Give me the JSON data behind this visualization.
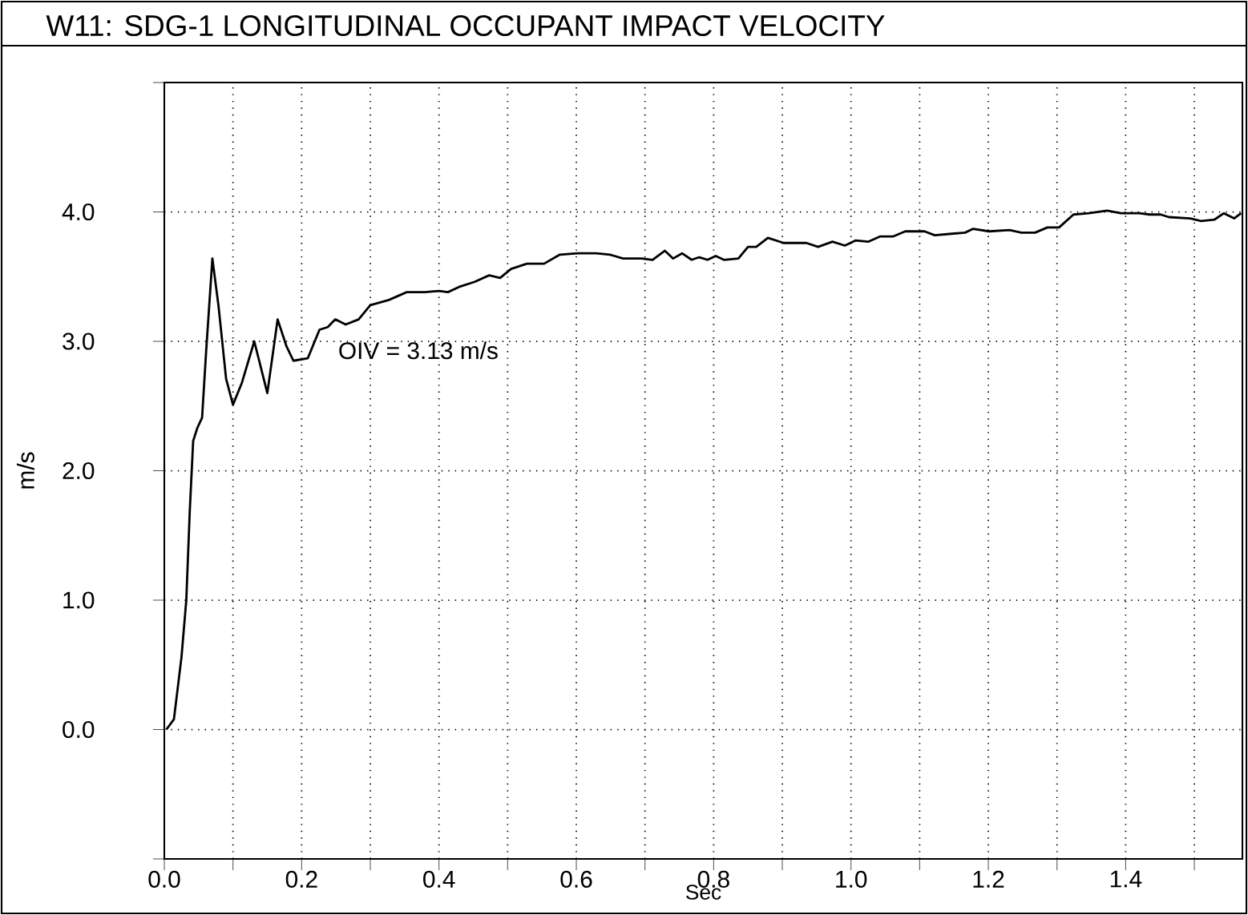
{
  "chart_data": {
    "type": "line",
    "title": "W11: SDG-1 LONGITUDINAL OCCUPANT IMPACT VELOCITY",
    "xlabel": "Sec",
    "ylabel": "m/s",
    "annotations": [
      "OIV = 3.13 m/s"
    ],
    "x": [
      0.003,
      0.014,
      0.025,
      0.032,
      0.037,
      0.042,
      0.048,
      0.055,
      0.061,
      0.07,
      0.079,
      0.09,
      0.1,
      0.113,
      0.131,
      0.15,
      0.165,
      0.178,
      0.188,
      0.209,
      0.226,
      0.238,
      0.249,
      0.264,
      0.283,
      0.3,
      0.327,
      0.353,
      0.379,
      0.4,
      0.413,
      0.429,
      0.452,
      0.473,
      0.489,
      0.505,
      0.528,
      0.553,
      0.576,
      0.602,
      0.629,
      0.649,
      0.668,
      0.695,
      0.711,
      0.729,
      0.741,
      0.754,
      0.768,
      0.779,
      0.791,
      0.803,
      0.815,
      0.836,
      0.85,
      0.862,
      0.879,
      0.902,
      0.935,
      0.952,
      0.973,
      0.991,
      1.007,
      1.025,
      1.042,
      1.061,
      1.079,
      1.107,
      1.122,
      1.143,
      1.166,
      1.178,
      1.201,
      1.231,
      1.248,
      1.268,
      1.286,
      1.303,
      1.324,
      1.346,
      1.373,
      1.393,
      1.42,
      1.435,
      1.451,
      1.463,
      1.494,
      1.51,
      1.529,
      1.543,
      1.558,
      1.568
    ],
    "values": [
      0.0,
      0.08,
      0.56,
      1.0,
      1.68,
      2.23,
      2.33,
      2.41,
      2.93,
      3.64,
      3.27,
      2.71,
      2.51,
      2.68,
      3.0,
      2.6,
      3.17,
      2.96,
      2.85,
      2.87,
      3.09,
      3.11,
      3.17,
      3.13,
      3.17,
      3.28,
      3.32,
      3.38,
      3.38,
      3.39,
      3.38,
      3.42,
      3.46,
      3.51,
      3.49,
      3.56,
      3.6,
      3.6,
      3.67,
      3.68,
      3.68,
      3.67,
      3.64,
      3.64,
      3.63,
      3.7,
      3.64,
      3.68,
      3.63,
      3.65,
      3.63,
      3.66,
      3.63,
      3.64,
      3.73,
      3.73,
      3.8,
      3.76,
      3.76,
      3.73,
      3.77,
      3.74,
      3.78,
      3.77,
      3.81,
      3.81,
      3.85,
      3.85,
      3.82,
      3.83,
      3.84,
      3.87,
      3.85,
      3.86,
      3.84,
      3.84,
      3.88,
      3.88,
      3.98,
      3.99,
      4.01,
      3.99,
      3.99,
      3.98,
      3.98,
      3.96,
      3.95,
      3.93,
      3.94,
      3.99,
      3.95,
      3.99
    ],
    "color": "#000000",
    "xlim": [
      0,
      1.57
    ],
    "ylim": [
      -1.0,
      5.0
    ],
    "xticks": [
      {
        "value": 0,
        "label": "0.0"
      },
      {
        "value": 0.1,
        "label": null
      },
      {
        "value": 0.2,
        "label": "0.2"
      },
      {
        "value": 0.3,
        "label": null
      },
      {
        "value": 0.4,
        "label": "0.4"
      },
      {
        "value": 0.5,
        "label": null
      },
      {
        "value": 0.6,
        "label": "0.6"
      },
      {
        "value": 0.7,
        "label": null
      },
      {
        "value": 0.8,
        "label": "0.8"
      },
      {
        "value": 0.9,
        "label": null
      },
      {
        "value": 1.0,
        "label": "1.0"
      },
      {
        "value": 1.1,
        "label": null
      },
      {
        "value": 1.2,
        "label": "1.2"
      },
      {
        "value": 1.3,
        "label": null
      },
      {
        "value": 1.4,
        "label": "1.4"
      },
      {
        "value": 1.5,
        "label": null
      }
    ],
    "yticks": [
      {
        "value": -1.0,
        "label": null
      },
      {
        "value": 0,
        "label": "0.0"
      },
      {
        "value": 1.0,
        "label": "1.0"
      },
      {
        "value": 2.0,
        "label": "2.0"
      },
      {
        "value": 3.0,
        "label": "3.0"
      },
      {
        "value": 4.0,
        "label": "4.0"
      },
      {
        "value": 5.0,
        "label": null
      }
    ],
    "grid": true,
    "line_style": "solid",
    "marker": "none"
  }
}
